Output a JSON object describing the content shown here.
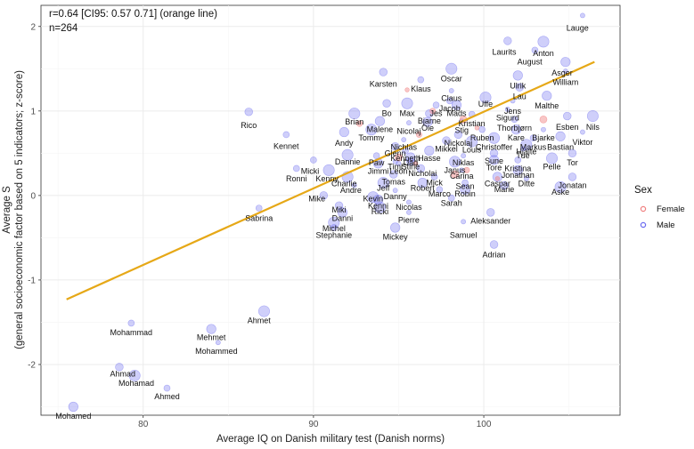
{
  "chart_data": {
    "type": "scatter",
    "annotation_lines": [
      "r=0.64 [CI95: 0.57 0.71] (orange line)",
      "n=264"
    ],
    "xlabel": "Average IQ on Danish military test (Danish norms)",
    "ylabel_lines": [
      "Average S",
      "(general socioeconomic factor based on 5 indicators; z-score)"
    ],
    "xlim": [
      74,
      108
    ],
    "ylim": [
      -2.6,
      2.25
    ],
    "xticks": [
      80,
      90,
      100
    ],
    "yticks": [
      -2,
      -1,
      0,
      1,
      2
    ],
    "grid": true,
    "legend": {
      "title": "Sex",
      "position": "right",
      "entries": [
        {
          "name": "Female",
          "color": "#f08080"
        },
        {
          "name": "Male",
          "color": "#6b6bf0"
        }
      ]
    },
    "regression_line": {
      "color": "#e6a817",
      "x": [
        75.5,
        106.5
      ],
      "y": [
        -1.23,
        1.58
      ]
    },
    "labeled_points": [
      {
        "name": "Lauge",
        "x": 105.8,
        "y": 2.13,
        "lx": 105.5,
        "ly": 1.98
      },
      {
        "name": "Laurits",
        "x": 101.4,
        "y": 1.83,
        "lx": 101.2,
        "ly": 1.7
      },
      {
        "name": "Anton",
        "x": 103.5,
        "y": 1.82,
        "lx": 103.5,
        "ly": 1.68
      },
      {
        "name": "August",
        "x": 103.0,
        "y": 1.72,
        "lx": 102.7,
        "ly": 1.58
      },
      {
        "name": "Asger",
        "x": 104.8,
        "y": 1.58,
        "lx": 104.6,
        "ly": 1.45
      },
      {
        "name": "William",
        "x": 104.8,
        "y": 1.47,
        "lx": 104.8,
        "ly": 1.34
      },
      {
        "name": "Karsten",
        "x": 94.1,
        "y": 1.46,
        "lx": 94.1,
        "ly": 1.32
      },
      {
        "name": "Oscar",
        "x": 98.1,
        "y": 1.5,
        "lx": 98.1,
        "ly": 1.38
      },
      {
        "name": "Klaus",
        "x": 96.3,
        "y": 1.37,
        "lx": 96.3,
        "ly": 1.26
      },
      {
        "name": "Ulrik",
        "x": 102.0,
        "y": 1.42,
        "lx": 102.0,
        "ly": 1.3
      },
      {
        "name": "Claus",
        "x": 98.1,
        "y": 1.24,
        "lx": 98.1,
        "ly": 1.15
      },
      {
        "name": "Lau",
        "x": 102.1,
        "y": 1.28,
        "lx": 102.1,
        "ly": 1.17
      },
      {
        "name": "Uffe",
        "x": 100.1,
        "y": 1.16,
        "lx": 100.1,
        "ly": 1.08
      },
      {
        "name": "Jacob",
        "x": 98.0,
        "y": 1.12,
        "lx": 98.0,
        "ly": 1.03
      },
      {
        "name": "Malthe",
        "x": 103.7,
        "y": 1.18,
        "lx": 103.7,
        "ly": 1.06
      },
      {
        "name": "Jens",
        "x": 101.7,
        "y": 1.12,
        "lx": 101.7,
        "ly": 1.0
      },
      {
        "name": "Bo",
        "x": 94.3,
        "y": 1.09,
        "lx": 94.3,
        "ly": 0.97
      },
      {
        "name": "Max",
        "x": 95.5,
        "y": 1.09,
        "lx": 95.5,
        "ly": 0.97
      },
      {
        "name": "Jes",
        "x": 97.2,
        "y": 1.07,
        "lx": 97.2,
        "ly": 0.97
      },
      {
        "name": "Mads",
        "x": 98.4,
        "y": 1.07,
        "lx": 98.4,
        "ly": 0.97
      },
      {
        "name": "Sigurd",
        "x": 101.4,
        "y": 1.02,
        "lx": 101.4,
        "ly": 0.92
      },
      {
        "name": "Bjarne",
        "x": 96.8,
        "y": 0.97,
        "lx": 96.8,
        "ly": 0.88
      },
      {
        "name": "Brian",
        "x": 92.4,
        "y": 0.97,
        "lx": 92.4,
        "ly": 0.87
      },
      {
        "name": "Kristian",
        "x": 99.3,
        "y": 0.96,
        "lx": 99.3,
        "ly": 0.85
      },
      {
        "name": "Ole",
        "x": 96.7,
        "y": 0.87,
        "lx": 96.7,
        "ly": 0.8
      },
      {
        "name": "Stig",
        "x": 98.7,
        "y": 0.88,
        "lx": 98.7,
        "ly": 0.77
      },
      {
        "name": "Esben",
        "x": 104.9,
        "y": 0.94,
        "lx": 104.9,
        "ly": 0.81
      },
      {
        "name": "Nils",
        "x": 106.4,
        "y": 0.94,
        "lx": 106.4,
        "ly": 0.81
      },
      {
        "name": "Thorbjørn",
        "x": 101.8,
        "y": 0.9,
        "lx": 101.8,
        "ly": 0.8
      },
      {
        "name": "Malene",
        "x": 93.9,
        "y": 0.88,
        "lx": 93.9,
        "ly": 0.78
      },
      {
        "name": "Nicolaj",
        "x": 95.6,
        "y": 0.86,
        "lx": 95.6,
        "ly": 0.76
      },
      {
        "name": "Rico",
        "x": 86.2,
        "y": 0.99,
        "lx": 86.2,
        "ly": 0.83
      },
      {
        "name": "Tommy",
        "x": 93.4,
        "y": 0.78,
        "lx": 93.4,
        "ly": 0.68
      },
      {
        "name": "Ruben",
        "x": 99.9,
        "y": 0.78,
        "lx": 99.9,
        "ly": 0.68
      },
      {
        "name": "Kare",
        "x": 101.9,
        "y": 0.78,
        "lx": 101.9,
        "ly": 0.68
      },
      {
        "name": "Bjarke",
        "x": 103.5,
        "y": 0.78,
        "lx": 103.5,
        "ly": 0.68
      },
      {
        "name": "Nickolaj",
        "x": 98.5,
        "y": 0.72,
        "lx": 98.5,
        "ly": 0.62
      },
      {
        "name": "Christoffer",
        "x": 100.6,
        "y": 0.68,
        "lx": 100.6,
        "ly": 0.57
      },
      {
        "name": "Markus",
        "x": 102.9,
        "y": 0.68,
        "lx": 102.9,
        "ly": 0.57
      },
      {
        "name": "Andy",
        "x": 91.8,
        "y": 0.75,
        "lx": 91.8,
        "ly": 0.62
      },
      {
        "name": "Nichlas",
        "x": 95.3,
        "y": 0.66,
        "lx": 95.3,
        "ly": 0.57
      },
      {
        "name": "Mikkel",
        "x": 97.8,
        "y": 0.65,
        "lx": 97.8,
        "ly": 0.55
      },
      {
        "name": "Louis",
        "x": 99.3,
        "y": 0.64,
        "lx": 99.3,
        "ly": 0.54
      },
      {
        "name": "Kennet",
        "x": 88.4,
        "y": 0.72,
        "lx": 88.4,
        "ly": 0.58
      },
      {
        "name": "Bastian",
        "x": 104.5,
        "y": 0.7,
        "lx": 104.5,
        "ly": 0.57
      },
      {
        "name": "Viktor",
        "x": 105.8,
        "y": 0.75,
        "lx": 105.8,
        "ly": 0.63
      },
      {
        "name": "Glenn",
        "x": 94.8,
        "y": 0.58,
        "lx": 94.8,
        "ly": 0.5
      },
      {
        "name": "Hjalte",
        "x": 102.5,
        "y": 0.6,
        "lx": 102.5,
        "ly": 0.52
      },
      {
        "name": "Kenneth",
        "x": 95.4,
        "y": 0.53,
        "lx": 95.4,
        "ly": 0.44
      },
      {
        "name": "Hasse",
        "x": 96.8,
        "y": 0.53,
        "lx": 96.8,
        "ly": 0.44
      },
      {
        "name": "Tue",
        "x": 102.3,
        "y": 0.55,
        "lx": 102.3,
        "ly": 0.47
      },
      {
        "name": "Sune",
        "x": 100.6,
        "y": 0.5,
        "lx": 100.6,
        "ly": 0.41
      },
      {
        "name": "Dannie",
        "x": 92.0,
        "y": 0.48,
        "lx": 92.0,
        "ly": 0.4
      },
      {
        "name": "Paw",
        "x": 93.7,
        "y": 0.47,
        "lx": 93.7,
        "ly": 0.39
      },
      {
        "name": "Dad",
        "x": 95.7,
        "y": 0.45,
        "lx": 95.7,
        "ly": 0.39
      },
      {
        "name": "Niklas",
        "x": 98.8,
        "y": 0.47,
        "lx": 98.8,
        "ly": 0.39
      },
      {
        "name": "Tor",
        "x": 105.2,
        "y": 0.5,
        "lx": 105.2,
        "ly": 0.39
      },
      {
        "name": "Pelle",
        "x": 104.0,
        "y": 0.44,
        "lx": 104.0,
        "ly": 0.34
      },
      {
        "name": "Kristina",
        "x": 102.0,
        "y": 0.42,
        "lx": 102.0,
        "ly": 0.32
      },
      {
        "name": "Tore",
        "x": 100.6,
        "y": 0.42,
        "lx": 100.6,
        "ly": 0.33
      },
      {
        "name": "Timi",
        "x": 94.8,
        "y": 0.4,
        "lx": 94.8,
        "ly": 0.34
      },
      {
        "name": "Stine",
        "x": 95.7,
        "y": 0.4,
        "lx": 95.7,
        "ly": 0.34
      },
      {
        "name": "Janus",
        "x": 98.3,
        "y": 0.4,
        "lx": 98.3,
        "ly": 0.3
      },
      {
        "name": "Micki",
        "x": 90.0,
        "y": 0.42,
        "lx": 89.8,
        "ly": 0.29
      },
      {
        "name": "Jimmi",
        "x": 93.8,
        "y": 0.38,
        "lx": 93.8,
        "ly": 0.29
      },
      {
        "name": "Leon",
        "x": 95.0,
        "y": 0.38,
        "lx": 95.0,
        "ly": 0.29
      },
      {
        "name": "Nicholai",
        "x": 96.3,
        "y": 0.32,
        "lx": 96.4,
        "ly": 0.26
      },
      {
        "name": "Kenny",
        "x": 90.9,
        "y": 0.3,
        "lx": 90.8,
        "ly": 0.2
      },
      {
        "name": "Ronni",
        "x": 89.0,
        "y": 0.32,
        "lx": 89.0,
        "ly": 0.2
      },
      {
        "name": "Jonathan",
        "x": 102.0,
        "y": 0.3,
        "lx": 102.0,
        "ly": 0.24
      },
      {
        "name": "Carina",
        "x": 98.7,
        "y": 0.3,
        "lx": 98.7,
        "ly": 0.23
      },
      {
        "name": "Tomas",
        "x": 94.7,
        "y": 0.25,
        "lx": 94.7,
        "ly": 0.16
      },
      {
        "name": "Charlie",
        "x": 92.0,
        "y": 0.22,
        "lx": 91.8,
        "ly": 0.14
      },
      {
        "name": "Mick",
        "x": 97.1,
        "y": 0.22,
        "lx": 97.1,
        "ly": 0.15
      },
      {
        "name": "Caspar",
        "x": 100.8,
        "y": 0.22,
        "lx": 100.8,
        "ly": 0.14
      },
      {
        "name": "Ditte",
        "x": 102.5,
        "y": 0.2,
        "lx": 102.5,
        "ly": 0.14
      },
      {
        "name": "Jonatan",
        "x": 105.2,
        "y": 0.22,
        "lx": 105.2,
        "ly": 0.12
      },
      {
        "name": "Jeff",
        "x": 94.1,
        "y": 0.15,
        "lx": 94.1,
        "ly": 0.09
      },
      {
        "name": "Sean",
        "x": 98.9,
        "y": 0.15,
        "lx": 98.9,
        "ly": 0.11
      },
      {
        "name": "Robert",
        "x": 96.4,
        "y": 0.15,
        "lx": 96.4,
        "ly": 0.09
      },
      {
        "name": "Andre",
        "x": 92.4,
        "y": 0.12,
        "lx": 92.2,
        "ly": 0.06
      },
      {
        "name": "Marie",
        "x": 101.2,
        "y": 0.12,
        "lx": 101.2,
        "ly": 0.07
      },
      {
        "name": "Aske",
        "x": 104.5,
        "y": 0.1,
        "lx": 104.5,
        "ly": 0.04
      },
      {
        "name": "Marco",
        "x": 97.4,
        "y": 0.07,
        "lx": 97.4,
        "ly": 0.02
      },
      {
        "name": "Robin",
        "x": 98.9,
        "y": 0.07,
        "lx": 98.9,
        "ly": 0.02
      },
      {
        "name": "Danny",
        "x": 94.8,
        "y": 0.06,
        "lx": 94.8,
        "ly": -0.01
      },
      {
        "name": "Mike",
        "x": 90.6,
        "y": 0.0,
        "lx": 90.2,
        "ly": -0.04
      },
      {
        "name": "Kevin",
        "x": 93.5,
        "y": -0.02,
        "lx": 93.5,
        "ly": -0.04
      },
      {
        "name": "Sarah",
        "x": 98.1,
        "y": -0.03,
        "lx": 98.1,
        "ly": -0.09
      },
      {
        "name": "Kenni",
        "x": 93.8,
        "y": -0.05,
        "lx": 93.8,
        "ly": -0.12
      },
      {
        "name": "Nicolas",
        "x": 95.6,
        "y": -0.08,
        "lx": 95.6,
        "ly": -0.14
      },
      {
        "name": "Miki",
        "x": 91.5,
        "y": -0.12,
        "lx": 91.5,
        "ly": -0.17
      },
      {
        "name": "Ricki",
        "x": 93.9,
        "y": -0.14,
        "lx": 93.9,
        "ly": -0.19
      },
      {
        "name": "Sabrina",
        "x": 86.8,
        "y": -0.15,
        "lx": 86.8,
        "ly": -0.27
      },
      {
        "name": "Danni",
        "x": 91.7,
        "y": -0.2,
        "lx": 91.7,
        "ly": -0.27
      },
      {
        "name": "Pierre",
        "x": 95.6,
        "y": -0.2,
        "lx": 95.6,
        "ly": -0.29
      },
      {
        "name": "Aleksander",
        "x": 100.4,
        "y": -0.2,
        "lx": 100.4,
        "ly": -0.3
      },
      {
        "name": "Michel",
        "x": 91.2,
        "y": -0.32,
        "lx": 91.2,
        "ly": -0.39
      },
      {
        "name": "Stephanie",
        "x": 91.2,
        "y": -0.38,
        "lx": 91.2,
        "ly": -0.47
      },
      {
        "name": "Mickey",
        "x": 94.8,
        "y": -0.38,
        "lx": 94.8,
        "ly": -0.49
      },
      {
        "name": "Samuel",
        "x": 98.8,
        "y": -0.31,
        "lx": 98.8,
        "ly": -0.47
      },
      {
        "name": "Adrian",
        "x": 100.6,
        "y": -0.58,
        "lx": 100.6,
        "ly": -0.7
      },
      {
        "name": "Ahmet",
        "x": 87.1,
        "y": -1.37,
        "lx": 86.8,
        "ly": -1.48
      },
      {
        "name": "Mohammad",
        "x": 79.3,
        "y": -1.51,
        "lx": 79.3,
        "ly": -1.62
      },
      {
        "name": "Mehmet",
        "x": 84.0,
        "y": -1.58,
        "lx": 84.0,
        "ly": -1.68
      },
      {
        "name": "Mohammed",
        "x": 84.4,
        "y": -1.74,
        "lx": 84.3,
        "ly": -1.84
      },
      {
        "name": "Ahmad",
        "x": 78.6,
        "y": -2.03,
        "lx": 78.8,
        "ly": -2.11
      },
      {
        "name": "Mohamad",
        "x": 79.5,
        "y": -2.13,
        "lx": 79.6,
        "ly": -2.22
      },
      {
        "name": "Ahmed",
        "x": 81.4,
        "y": -2.28,
        "lx": 81.4,
        "ly": -2.38
      },
      {
        "name": "Mohamed",
        "x": 75.9,
        "y": -2.5,
        "lx": 75.9,
        "ly": -2.61
      }
    ],
    "female_points": [
      {
        "x": 95.5,
        "y": 1.25
      },
      {
        "x": 97.0,
        "y": 1.0
      },
      {
        "x": 98.8,
        "y": 0.9
      },
      {
        "x": 99.6,
        "y": 0.8
      },
      {
        "x": 96.2,
        "y": 0.72
      },
      {
        "x": 95.0,
        "y": 0.45
      },
      {
        "x": 96.0,
        "y": 0.38
      },
      {
        "x": 99.0,
        "y": 0.3
      },
      {
        "x": 98.3,
        "y": 0.25
      },
      {
        "x": 100.8,
        "y": 0.2
      },
      {
        "x": 92.7,
        "y": 0.85
      },
      {
        "x": 103.5,
        "y": 0.9
      }
    ]
  }
}
